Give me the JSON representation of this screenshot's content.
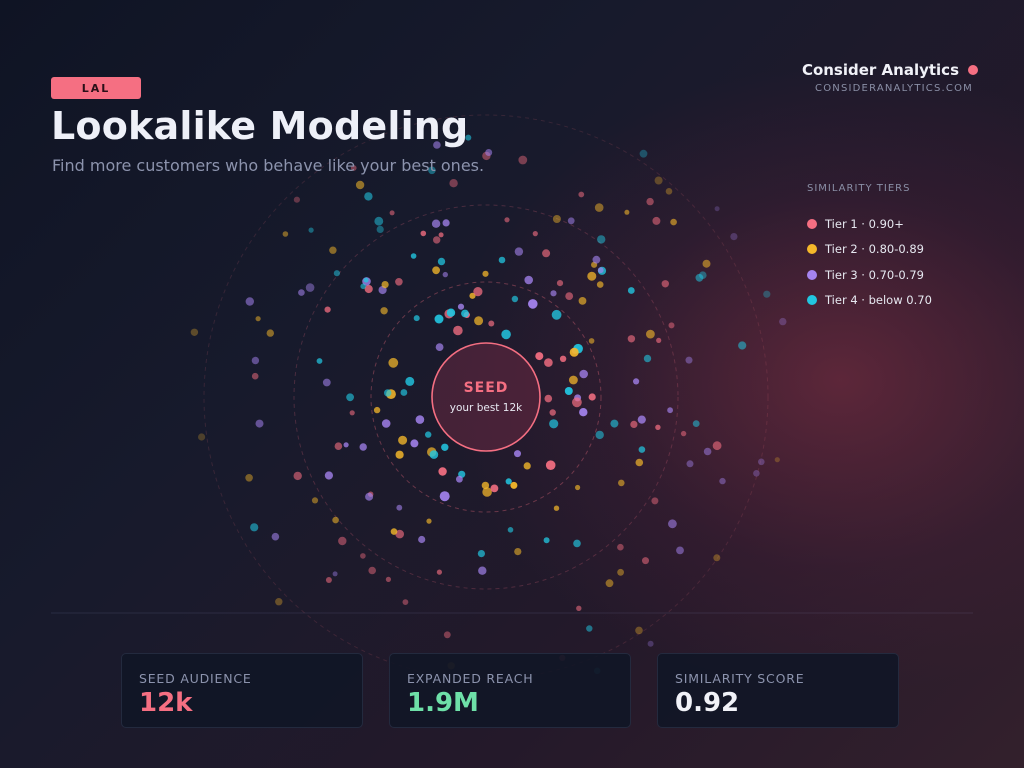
{
  "header": {
    "tag": "LAL",
    "title": "Lookalike Modeling",
    "subtitle": "Find more customers who behave like your best ones."
  },
  "brand": {
    "name": "Consider Analytics",
    "url": "CONSIDERANALYTICS.COM"
  },
  "seed": {
    "label": "SEED",
    "caption": "your best 12k"
  },
  "legend": {
    "title": "SIMILARITY TIERS",
    "tiers": [
      {
        "label": "Tier 1 · 0.90+",
        "color": "#f56f82"
      },
      {
        "label": "Tier 2 · 0.80-0.89",
        "color": "#f5b82a"
      },
      {
        "label": "Tier 3 · 0.70-0.79",
        "color": "#a584f0"
      },
      {
        "label": "Tier 4 · below 0.70",
        "color": "#22c6e0"
      }
    ]
  },
  "stats": [
    {
      "label": "SEED AUDIENCE",
      "value": "12k",
      "color": "#f56f82"
    },
    {
      "label": "EXPANDED REACH",
      "value": "1.9M",
      "color": "#6ee0a8"
    },
    {
      "label": "SIMILARITY SCORE",
      "value": "0.92",
      "color": "#f1f2f8"
    }
  ],
  "colors": {
    "accent": "#f56f82",
    "background": "#171a2c"
  }
}
